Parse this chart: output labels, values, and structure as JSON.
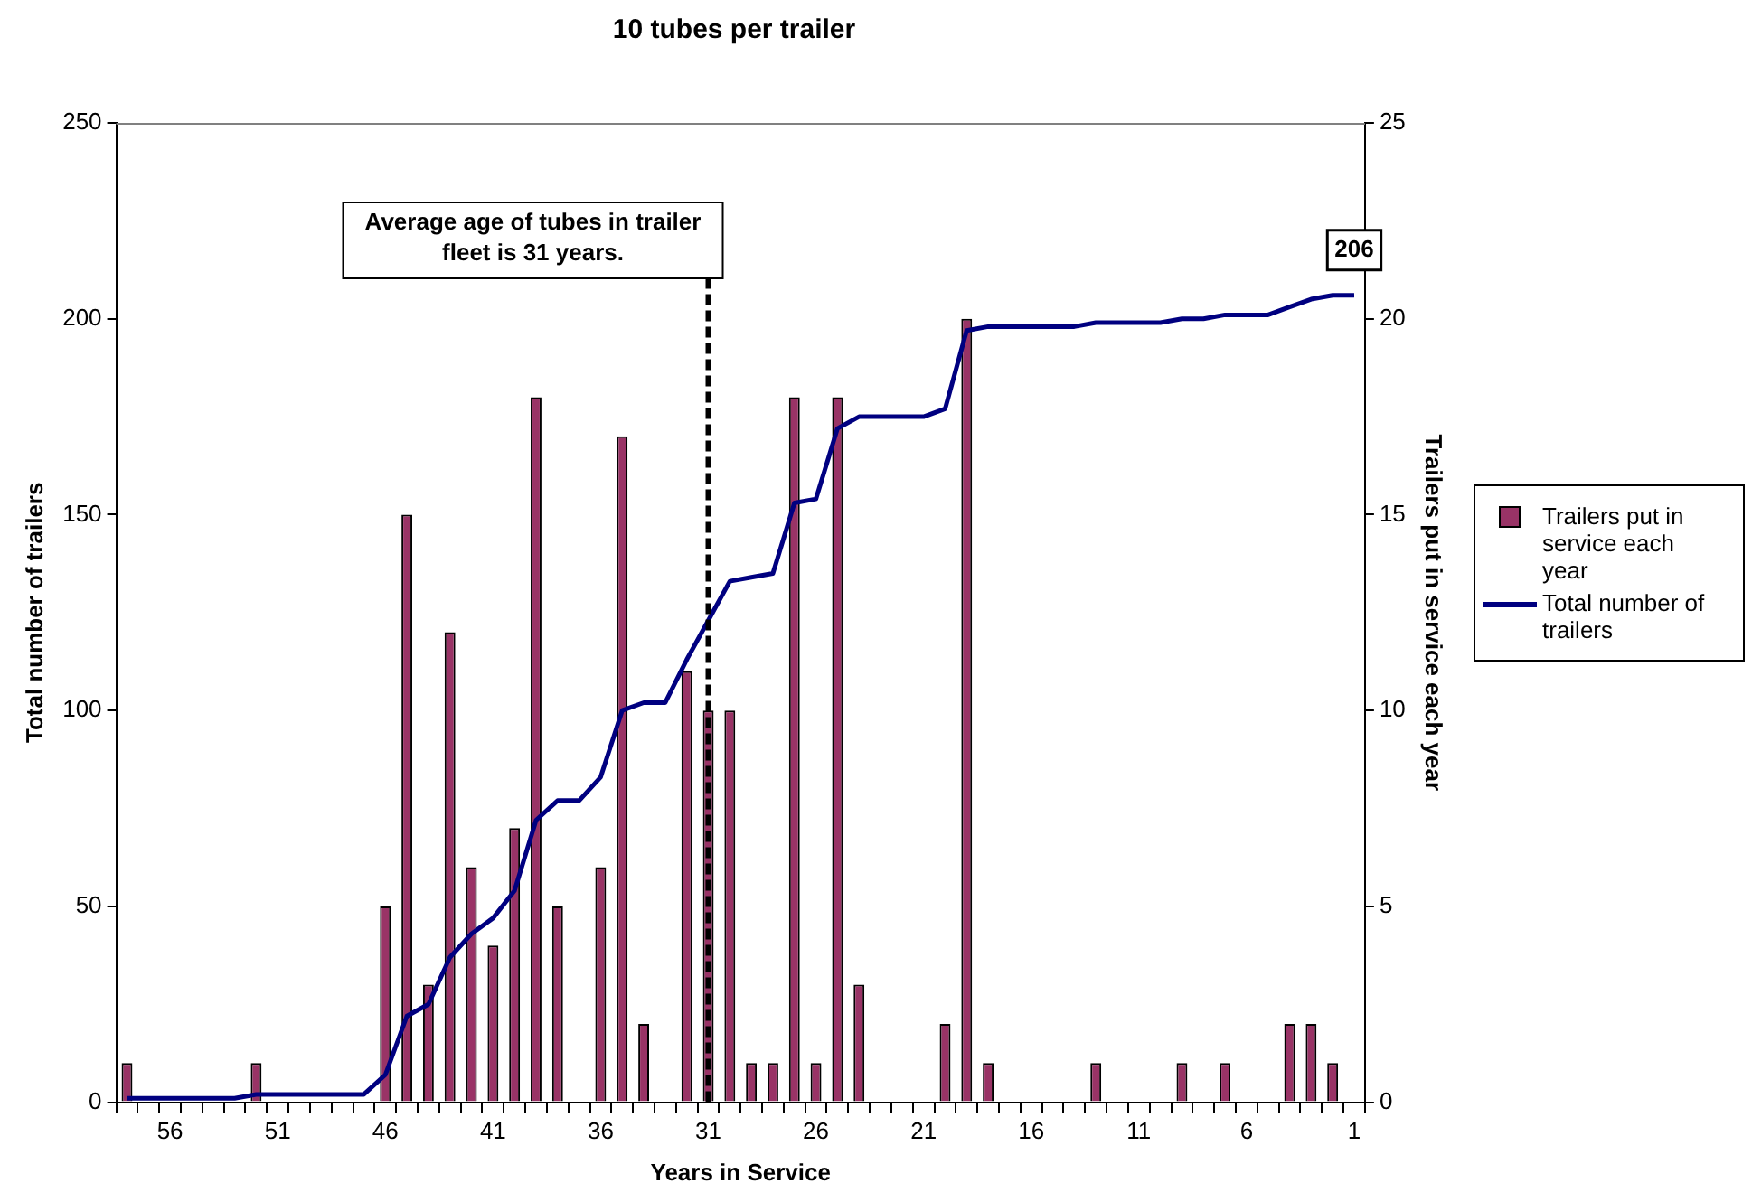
{
  "chart_data": {
    "type": "bar",
    "title": "10 tubes per trailer",
    "xlabel": "Years in Service",
    "ylabel": "Total number of trailers",
    "y2label": "Trailers put in service each year",
    "categories": [
      null,
      null,
      "56",
      null,
      null,
      null,
      null,
      "51",
      null,
      null,
      null,
      null,
      "46",
      null,
      null,
      null,
      null,
      "41",
      null,
      null,
      null,
      null,
      "36",
      null,
      null,
      null,
      null,
      "31",
      null,
      null,
      null,
      null,
      "26",
      null,
      null,
      null,
      null,
      "21",
      null,
      null,
      null,
      null,
      "16",
      null,
      null,
      null,
      null,
      "11",
      null,
      null,
      null,
      null,
      "6",
      null,
      null,
      null,
      null,
      "1"
    ],
    "series": [
      {
        "name": "Trailers put in service each year",
        "axis": "y2",
        "color": "#993366",
        "values": [
          1,
          0,
          0,
          0,
          0,
          0,
          1,
          0,
          0,
          0,
          0,
          0,
          5,
          15,
          3,
          12,
          6,
          4,
          7,
          18,
          5,
          0,
          6,
          17,
          2,
          0,
          11,
          10,
          10,
          1,
          1,
          18,
          1,
          18,
          3,
          0,
          0,
          0,
          2,
          20,
          1,
          0,
          0,
          0,
          0,
          1,
          0,
          0,
          0,
          1,
          0,
          1,
          0,
          0,
          2,
          2,
          1,
          0
        ]
      },
      {
        "name": "Total number of trailers",
        "type": "line",
        "axis": "y",
        "color": "#000080",
        "values": [
          1,
          1,
          1,
          1,
          1,
          1,
          2,
          2,
          2,
          2,
          2,
          2,
          7,
          22,
          25,
          37,
          43,
          47,
          54,
          72,
          77,
          77,
          83,
          100,
          102,
          102,
          113,
          123,
          133,
          134,
          135,
          153,
          154,
          172,
          175,
          175,
          175,
          175,
          177,
          197,
          198,
          198,
          198,
          198,
          198,
          199,
          199,
          199,
          199,
          200,
          200,
          201,
          201,
          201,
          203,
          205,
          206,
          206
        ],
        "value_labels": [
          null,
          null,
          null,
          null,
          null,
          null,
          null,
          null,
          null,
          null,
          null,
          null,
          null,
          null,
          null,
          null,
          null,
          null,
          null,
          null,
          null,
          null,
          null,
          null,
          null,
          null,
          null,
          null,
          null,
          null,
          null,
          null,
          null,
          null,
          null,
          null,
          null,
          null,
          null,
          null,
          null,
          null,
          null,
          null,
          null,
          null,
          null,
          null,
          null,
          null,
          null,
          null,
          null,
          null,
          null,
          null,
          null,
          "206"
        ]
      }
    ],
    "ylim": [
      0,
      250
    ],
    "yticks": [
      0,
      50,
      100,
      150,
      200,
      250
    ],
    "y2lim": [
      0,
      25
    ],
    "y2ticks": [
      0,
      5,
      10,
      15,
      20,
      25
    ],
    "ref_lines": [
      {
        "axis": "x",
        "value": "31",
        "label": "Average age of tubes in trailer fleet is 31 years.",
        "color": "#000000",
        "line_style": "dashed"
      }
    ],
    "grid": false,
    "legend": "right",
    "marker": "none"
  }
}
